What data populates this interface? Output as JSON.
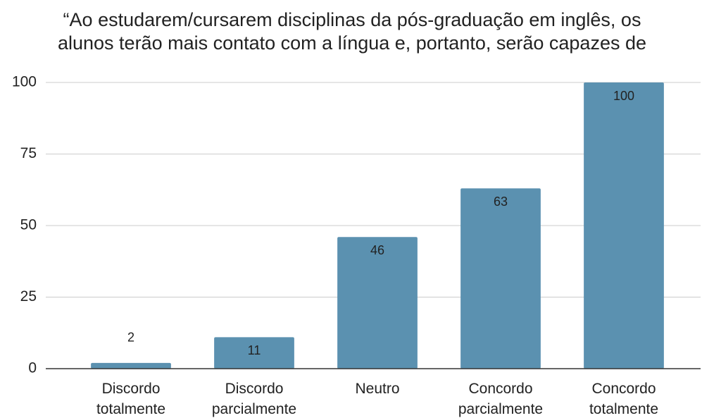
{
  "chart_data": {
    "type": "bar",
    "title": [
      "“Ao estudarem/cursarem disciplinas da pós-graduação em inglês, os",
      "alunos terão mais contato com a língua e, portanto, serão capazes de"
    ],
    "categories": [
      "Discordo totalmente",
      "Discordo parcialmente",
      "Neutro",
      "Concordo parcialmente",
      "Concordo totalmente"
    ],
    "values": [
      2,
      11,
      46,
      63,
      100
    ],
    "color": "#5b91b0",
    "ylim": [
      0,
      100
    ],
    "yticks": [
      0,
      25,
      50,
      75,
      100
    ],
    "grid": true
  }
}
